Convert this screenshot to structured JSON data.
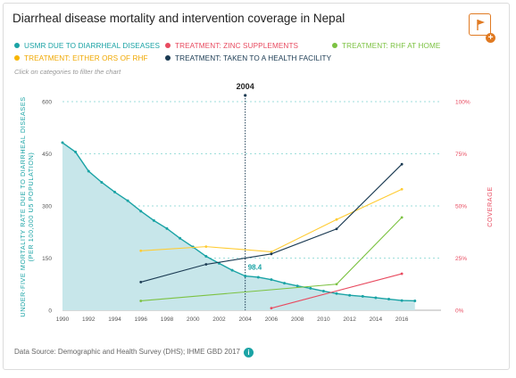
{
  "title": "Diarrheal disease mortality and intervention coverage in Nepal",
  "hint": "Click on categories to filter the chart",
  "source": "Data Source: Demographic and Health Survey (DHS); IHME GBD 2017",
  "info_glyph": "i",
  "flag_plus": "+",
  "legend": [
    {
      "label": "USMR DUE TO DIARRHEAL DISEASES",
      "color": "#1aa3a5"
    },
    {
      "label": "TREATMENT: ZINC SUPPLEMENTS",
      "color": "#e84a5f"
    },
    {
      "label": "TREATMENT: RHF AT HOME",
      "color": "#7cc242"
    },
    {
      "label": "TREATMENT: EITHER ORS OF RHF",
      "color": "#f7b500"
    },
    {
      "label": "TREATMENT: TAKEN TO A HEALTH FACILITY",
      "color": "#1a3a52"
    }
  ],
  "colors": {
    "usmr": "#1aa3a5",
    "area": "#c7e6ea",
    "zinc": "#e84a5f",
    "rhf": "#7cc242",
    "ors": "#ffcc33",
    "facility": "#1a3a52",
    "right_axis": "#e84a5f",
    "grid": "#7fd4d0"
  },
  "chart_data": {
    "type": "line",
    "ylabel": "UNDER-FIVE MORTALITY RATE DUE TO DIARRHEAL DISEASES (PER 100,000 U5 POPULATION)",
    "y2label": "COVERAGE",
    "x_ticks": [
      "1990",
      "1992",
      "1994",
      "1996",
      "1998",
      "2000",
      "2002",
      "2004",
      "2006",
      "2008",
      "2010",
      "2012",
      "2014",
      "2016"
    ],
    "xlim": [
      1990,
      2019
    ],
    "y_ticks": [
      "0",
      "150",
      "300",
      "450",
      "600"
    ],
    "ylim": [
      0,
      600
    ],
    "y2_ticks": [
      "0%",
      "25%",
      "50%",
      "75%",
      "100%"
    ],
    "y2lim": [
      0,
      100
    ],
    "marker": {
      "year": 2004,
      "label": "2004",
      "value_label": "98.4"
    },
    "series": [
      {
        "name": "USMR DUE TO DIARRHEAL DISEASES",
        "axis": "left",
        "area": true,
        "x": [
          1990,
          1991,
          1992,
          1993,
          1994,
          1995,
          1996,
          1997,
          1998,
          1999,
          2000,
          2001,
          2002,
          2003,
          2004,
          2005,
          2006,
          2007,
          2008,
          2009,
          2010,
          2011,
          2012,
          2013,
          2014,
          2015,
          2016,
          2017
        ],
        "y": [
          482,
          455,
          400,
          368,
          340,
          315,
          285,
          258,
          235,
          207,
          182,
          155,
          135,
          115,
          98.4,
          95,
          88,
          78,
          70,
          63,
          55,
          48,
          43,
          40,
          36,
          32,
          28,
          27
        ]
      },
      {
        "name": "TREATMENT: ZINC SUPPLEMENTS",
        "axis": "right",
        "x": [
          2006,
          2016
        ],
        "y": [
          1,
          17.5
        ]
      },
      {
        "name": "TREATMENT: RHF AT HOME",
        "axis": "right",
        "x": [
          1996,
          2011,
          2016
        ],
        "y": [
          4.5,
          12.5,
          44.5
        ]
      },
      {
        "name": "TREATMENT: EITHER ORS OF RHF",
        "axis": "right",
        "x": [
          1996,
          2001,
          2006,
          2011,
          2016
        ],
        "y": [
          28.5,
          30.5,
          28,
          43.5,
          58
        ]
      },
      {
        "name": "TREATMENT: TAKEN TO A HEALTH FACILITY",
        "axis": "right",
        "x": [
          1996,
          2001,
          2006,
          2011,
          2016
        ],
        "y": [
          13.5,
          22,
          27,
          39,
          70
        ]
      }
    ]
  }
}
